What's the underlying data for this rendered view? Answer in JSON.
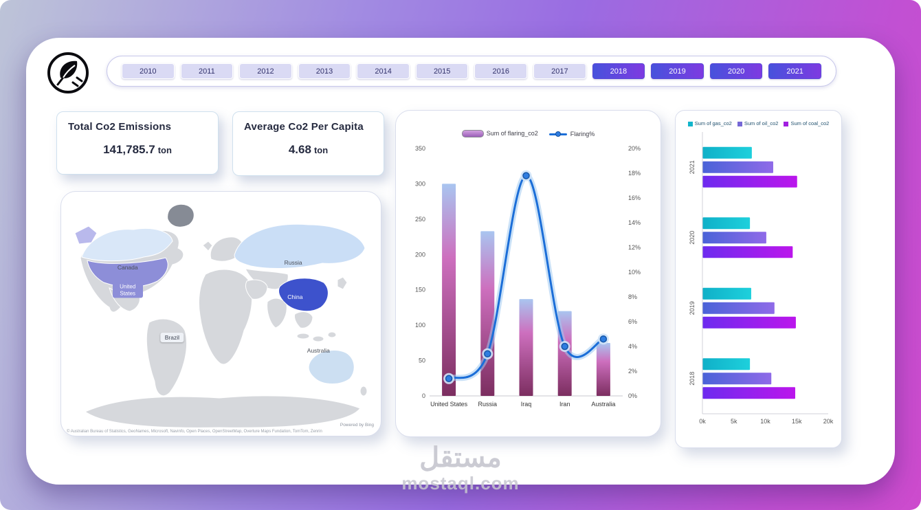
{
  "year_filter": {
    "years": [
      "2010",
      "2011",
      "2012",
      "2013",
      "2014",
      "2015",
      "2016",
      "2017",
      "2018",
      "2019",
      "2020",
      "2021"
    ],
    "selected": [
      "2018",
      "2019",
      "2020",
      "2021"
    ]
  },
  "kpis": [
    {
      "title": "Total Co2 Emissions",
      "value": "141,785.7",
      "unit": "ton"
    },
    {
      "title": "Average Co2 Per Capita",
      "value": "4.68",
      "unit": "ton"
    }
  ],
  "map": {
    "countries": [
      {
        "name": "Canada",
        "style": "text"
      },
      {
        "name": "United States",
        "style": "badge-purple"
      },
      {
        "name": "Russia",
        "style": "text"
      },
      {
        "name": "China",
        "style": "badge-blue"
      },
      {
        "name": "Brazil",
        "style": "badge-light"
      },
      {
        "name": "Australia",
        "style": "text"
      }
    ],
    "powered_by": "Powered by Bing",
    "attribution": "© Australian Bureau of Statistics, GeoNames, Microsoft, Navinfo, Open Places, OpenStreetMap, Overture Maps Fundation, TomTom, Zenrin"
  },
  "chart_data": [
    {
      "type": "bar",
      "subtype": "combo-bar-line",
      "categories": [
        "United States",
        "Russia",
        "Iraq",
        "Iran",
        "Australia"
      ],
      "series": [
        {
          "name": "Sum of flaring_co2",
          "kind": "bar",
          "axis": "left",
          "values": [
            300,
            233,
            137,
            120,
            75
          ]
        },
        {
          "name": "Flaring%",
          "kind": "line",
          "axis": "right",
          "values": [
            1.4,
            3.4,
            17.8,
            4.0,
            4.6
          ],
          "color": "#1b6ed8"
        }
      ],
      "bar_colors": [
        {
          "offset": 0,
          "color": "#a9c5f0"
        },
        {
          "offset": 0.35,
          "color": "#cd6fbe"
        },
        {
          "offset": 1,
          "color": "#7c2e60"
        }
      ],
      "y_left": {
        "min": 0,
        "max": 350,
        "step": 50
      },
      "y_right": {
        "min": 0,
        "max": 20,
        "step": 2,
        "format": "percent"
      },
      "legend_position": "top",
      "grid": false
    },
    {
      "type": "bar",
      "subtype": "horizontal-grouped",
      "categories": [
        "2021",
        "2020",
        "2019",
        "2018"
      ],
      "series": [
        {
          "name": "Sum of gas_co2",
          "values": [
            7800,
            7500,
            7700,
            7500
          ],
          "color": [
            "#0fb0c8",
            "#1ed0dc"
          ],
          "swatch": "#12b5cb"
        },
        {
          "name": "Sum of oil_co2",
          "values": [
            11200,
            10100,
            11400,
            10900
          ],
          "color": [
            "#4a63d8",
            "#8f6ae8"
          ],
          "swatch": "#7668d6"
        },
        {
          "name": "Sum of coal_co2",
          "values": [
            15000,
            14300,
            14800,
            14700
          ],
          "color": [
            "#6d2bef",
            "#bb16ec"
          ],
          "swatch": "#a21fe0"
        }
      ],
      "x": {
        "min": 0,
        "max": 20000,
        "ticks": [
          "0k",
          "5k",
          "10k",
          "15k",
          "20k"
        ]
      },
      "legend_position": "top",
      "grid": false
    }
  ],
  "watermark": {
    "line1": "مستقل",
    "line2": "mostaql.com"
  }
}
